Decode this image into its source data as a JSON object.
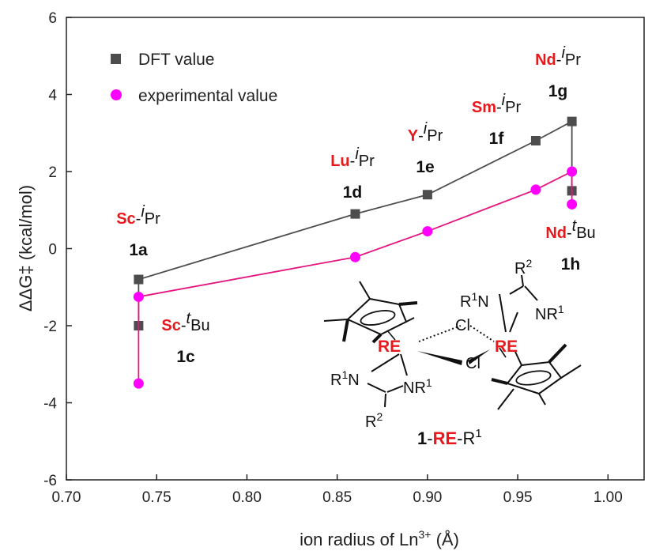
{
  "chart_data": {
    "type": "line",
    "xlabel": "ion radius of Ln",
    "xlabel_sup": "3+",
    "xlabel_unit": " (Å)",
    "ylabel": "ΔΔG‡ (kcal/mol)",
    "xlim": [
      0.7,
      1.02
    ],
    "ylim": [
      -6,
      6
    ],
    "x_ticks": [
      "0.70",
      "0.75",
      "0.80",
      "0.85",
      "0.90",
      "0.95",
      "1.00"
    ],
    "y_ticks": [
      "6",
      "4",
      "2",
      "0",
      "-2",
      "-4",
      "-6"
    ],
    "grid": false,
    "legend_position": "top-left",
    "series": [
      {
        "name": "DFT value",
        "color": "#4d4d4d",
        "marker": "square",
        "points": [
          [
            0.74,
            -2.0
          ],
          [
            0.74,
            -0.8
          ],
          [
            0.86,
            0.9
          ],
          [
            0.9,
            1.4
          ],
          [
            0.96,
            2.8
          ],
          [
            0.98,
            3.3
          ],
          [
            0.98,
            1.5
          ]
        ]
      },
      {
        "name": "experimental value",
        "color": "#e5157f",
        "marker_color": "#ff00ff",
        "marker": "circle",
        "points": [
          [
            0.74,
            -3.5
          ],
          [
            0.74,
            -1.25
          ],
          [
            0.86,
            -0.22
          ],
          [
            0.9,
            0.45
          ],
          [
            0.96,
            1.53
          ],
          [
            0.98,
            2.0
          ],
          [
            0.98,
            1.15
          ]
        ]
      }
    ],
    "annotations": [
      {
        "el": "Sc",
        "sep": "-",
        "sup": "i",
        "rest": "Pr",
        "id": "1a"
      },
      {
        "el": "Sc",
        "sep": "-",
        "sup": "t",
        "rest": "Bu",
        "id": "1c"
      },
      {
        "el": "Lu",
        "sep": "-",
        "sup": "i",
        "rest": "Pr",
        "id": "1d"
      },
      {
        "el": "Y",
        "sep": "-",
        "sup": "i",
        "rest": "Pr",
        "id": "1e"
      },
      {
        "el": "Sm",
        "sep": "-",
        "sup": "i",
        "rest": "Pr",
        "id": "1f"
      },
      {
        "el": "Nd",
        "sep": "-",
        "sup": "i",
        "rest": "Pr",
        "id": "1g"
      },
      {
        "el": "Nd",
        "sep": "-",
        "sup": "t",
        "rest": "Bu",
        "id": "1h"
      }
    ]
  },
  "structure": {
    "re": "RE",
    "cl": "Cl",
    "r1n": "R",
    "r1n_sup": "1",
    "n": "N",
    "nr1": "NR",
    "nr1_sup": "1",
    "r2": "R",
    "r2_sup": "2",
    "caption_num": "1",
    "caption_dash1": "-",
    "caption_re": "RE",
    "caption_dash2": "-R",
    "caption_sup": "1"
  }
}
